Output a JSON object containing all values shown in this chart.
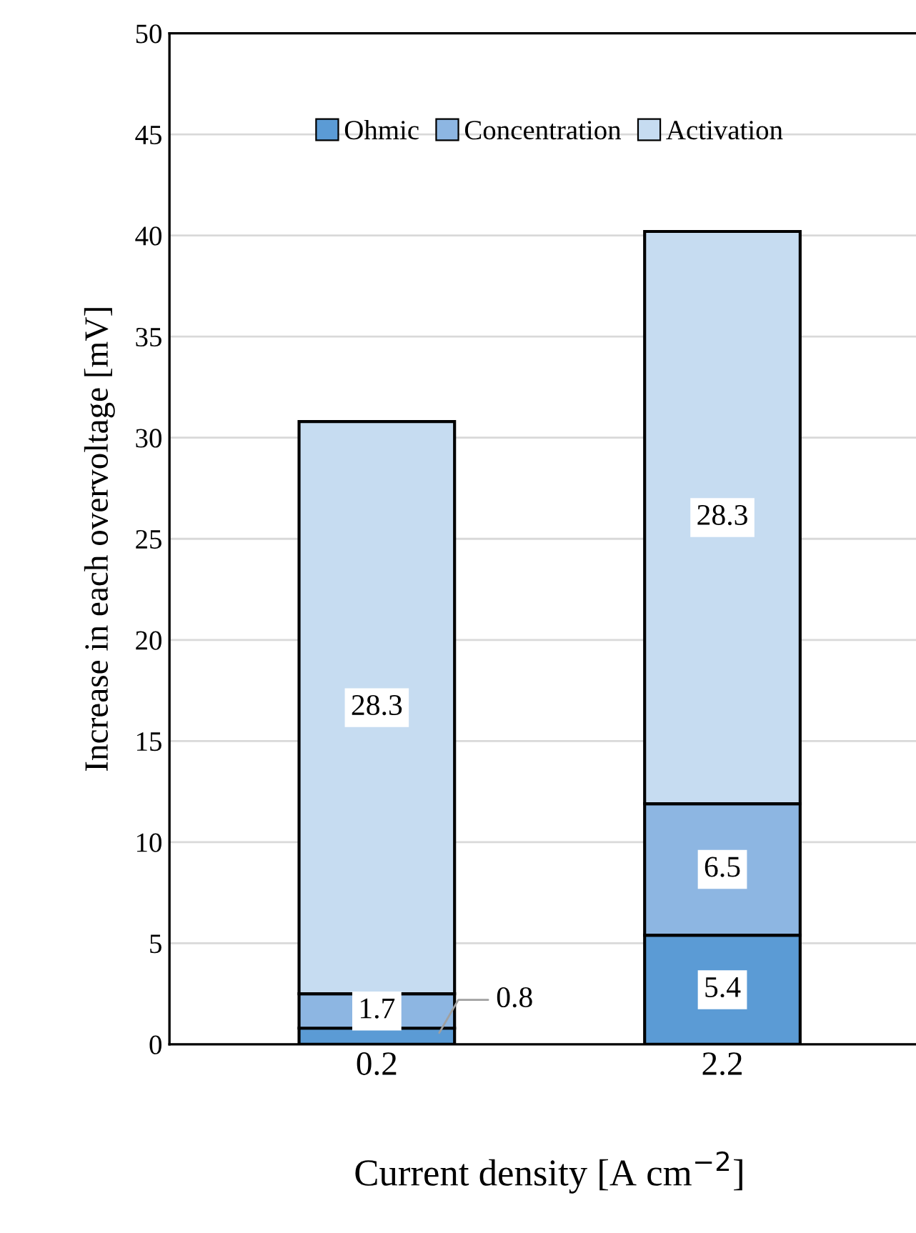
{
  "chart_data": {
    "type": "bar",
    "stacked": true,
    "categories": [
      "0.2",
      "2.2"
    ],
    "series": [
      {
        "name": "Ohmic",
        "color": "#5b9bd5",
        "values": [
          0.8,
          5.4
        ]
      },
      {
        "name": "Concentration",
        "color": "#8db6e2",
        "values": [
          1.7,
          6.5
        ]
      },
      {
        "name": "Activation",
        "color": "#c6dcf1",
        "values": [
          28.3,
          28.3
        ]
      }
    ],
    "xlabel": "Current density [A cm$^{−2}$]",
    "ylabel": "Increase in each overvoltage [mV]",
    "ylim": [
      0,
      50
    ],
    "yticks": [
      0,
      5,
      10,
      15,
      20,
      25,
      30,
      35,
      40,
      45,
      50
    ],
    "grid": "y",
    "legend": "top",
    "data_labels": true
  }
}
